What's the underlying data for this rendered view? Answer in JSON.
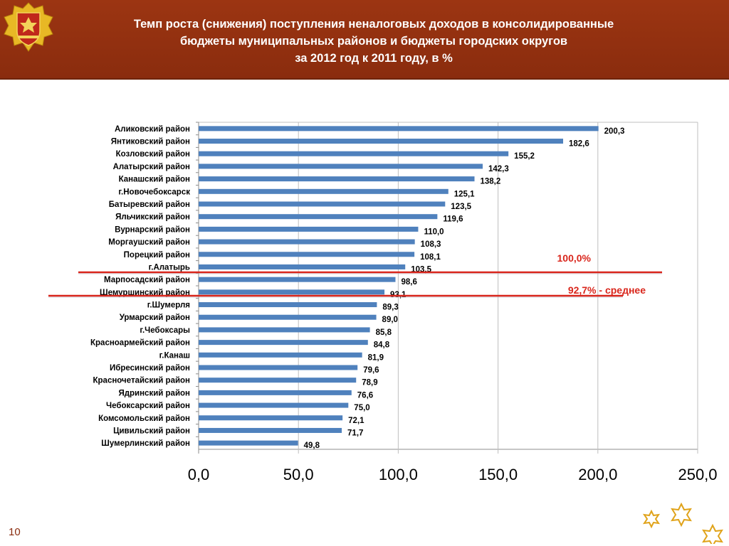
{
  "slide": {
    "title_lines": [
      "Темп роста (снижения) поступления неналоговых доходов в консолидированные",
      "бюджеты муниципальных районов и бюджеты городских округов",
      "за 2012 год к 2011 году, в %"
    ],
    "page_number": "10",
    "colors": {
      "header_bg": "#9c3512",
      "bar": "#4f81bd",
      "reference_line": "#d9261c",
      "reference_label": "#d9261c",
      "emblem_gold": "#e8b825",
      "emblem_red": "#c0281b"
    },
    "icons": [
      "emblem-icon",
      "ornament-star-icon"
    ]
  },
  "chart_data": {
    "type": "bar",
    "orientation": "horizontal",
    "categories": [
      "Аликовский район",
      "Янтиковский район",
      "Козловский район",
      "Алатырский район",
      "Канашский район",
      "г.Новочебоксарск",
      "Батыревский район",
      "Яльчикский район",
      "Вурнарский район",
      "Моргаушский район",
      "Порецкий район",
      "г.Алатырь",
      "Марпосадский район",
      "Шемуршинский район",
      "г.Шумерля",
      "Урмарский район",
      "г.Чебоксары",
      "Красноармейский район",
      "г.Канаш",
      "Ибресинский район",
      "Красночетайский район",
      "Ядринский район",
      "Чебоксарский район",
      "Комсомольский район",
      "Цивильский район",
      "Шумерлинский район"
    ],
    "values": [
      200.3,
      182.6,
      155.2,
      142.3,
      138.2,
      125.1,
      123.5,
      119.6,
      110.0,
      108.3,
      108.1,
      103.5,
      98.6,
      93.1,
      89.3,
      89.0,
      85.8,
      84.8,
      81.9,
      79.6,
      78.9,
      76.6,
      75.0,
      72.1,
      71.7,
      49.8
    ],
    "value_labels": [
      "200,3",
      "182,6",
      "155,2",
      "142,3",
      "138,2",
      "125,1",
      "123,5",
      "119,6",
      "110,0",
      "108,3",
      "108,1",
      "103,5",
      "98,6",
      "93,1",
      "89,3",
      "89,0",
      "85,8",
      "84,8",
      "81,9",
      "79,6",
      "78,9",
      "76,6",
      "75,0",
      "72,1",
      "71,7",
      "49,8"
    ],
    "xlim": [
      0,
      250
    ],
    "x_ticks": [
      0,
      50,
      100,
      150,
      200,
      250
    ],
    "x_tick_labels": [
      "0,0",
      "50,0",
      "100,0",
      "150,0",
      "200,0",
      "250,0"
    ],
    "grid": true,
    "legend": "none",
    "reference_lines": [
      {
        "label": "100,0%",
        "value": 100.0
      },
      {
        "label": "92,7%  - среднее",
        "value": 92.7
      }
    ]
  }
}
